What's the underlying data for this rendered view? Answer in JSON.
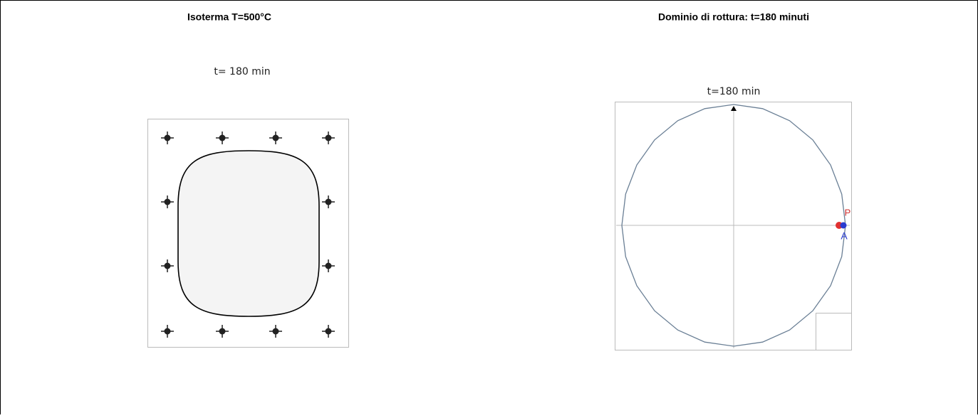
{
  "left_panel": {
    "title": "Isoterma T=500°C",
    "time_label": "t= 180 min"
  },
  "right_panel": {
    "title": "Dominio di rottura: t=180 minuti",
    "time_label": "t=180 min",
    "point_p": "P",
    "point_a": "A"
  }
}
